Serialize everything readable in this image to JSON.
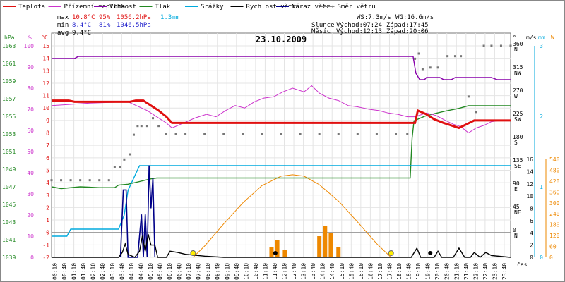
{
  "chart_data": {
    "type": "line",
    "title": "23.10.2009",
    "legend": [
      {
        "label": "Teplota",
        "color": "#e01010"
      },
      {
        "label": "Přízemní teplota",
        "color": "#cc33cc"
      },
      {
        "label": "Vlhkost",
        "color": "#8800aa"
      },
      {
        "label": "Tlak",
        "color": "#228822"
      },
      {
        "label": "Srážky",
        "color": "#00aadd"
      },
      {
        "label": "Rychlost větru",
        "color": "#000000"
      },
      {
        "label": "Náraz větru",
        "color": "#000088"
      },
      {
        "label": "Směr větru",
        "color": "#888888"
      }
    ],
    "stats": {
      "row_labels": [
        "max",
        "min",
        "avg"
      ],
      "temp": [
        "10.8°C",
        "8.4°C",
        "9.4°C"
      ],
      "hum": [
        "95%",
        "81%",
        ""
      ],
      "press": [
        "1056.2hPa",
        "1046.5hPa",
        ""
      ],
      "rain": [
        "1.3mm",
        "",
        ""
      ]
    },
    "info": {
      "ws": "WS:7.3m/s",
      "wg": "WG:16.6m/s",
      "sun": "Slunce",
      "sun_rise": "Východ:07:24",
      "sun_set": "Západ:17:45",
      "moon": "Měsíc",
      "moon_rise": "Východ:12:13",
      "moon_set": "Západ:20:06"
    },
    "axis_units": {
      "hpa": "hPa",
      "pct": "%",
      "degc": "°C",
      "deg": "°",
      "ms": "m/s",
      "mm": "mm",
      "wh": "W",
      "cas": "čas"
    },
    "axes": {
      "hpa": [
        "1039",
        "1041",
        "1043",
        "1045",
        "1047",
        "1049",
        "1051",
        "1053",
        "1055",
        "1057",
        "1059",
        "1061",
        "1063"
      ],
      "pct": [
        "0",
        "10",
        "20",
        "30",
        "40",
        "50",
        "60",
        "70",
        "80",
        "90",
        "100"
      ],
      "degc": [
        "-2",
        "-1",
        "0",
        "1",
        "2",
        "3",
        "4",
        "5",
        "6",
        "7",
        "8",
        "9",
        "10",
        "11",
        "12",
        "13",
        "14",
        "15"
      ],
      "dir": [
        {
          "deg": "0",
          "lbl": "N"
        },
        {
          "deg": "45",
          "lbl": "NE"
        },
        {
          "deg": "90",
          "lbl": "E"
        },
        {
          "deg": "135",
          "lbl": "SE"
        },
        {
          "deg": "180",
          "lbl": "S"
        },
        {
          "deg": "225",
          "lbl": "SW"
        },
        {
          "deg": "270",
          "lbl": "W"
        },
        {
          "deg": "315",
          "lbl": "NW"
        },
        {
          "deg": "360",
          "lbl": "N"
        }
      ],
      "ms": [
        "0",
        "2",
        "4",
        "6",
        "8",
        "10",
        "12",
        "14",
        "16"
      ],
      "mm": [
        "0",
        "1",
        "2",
        "3"
      ],
      "wh": [
        "0",
        "60",
        "120",
        "180",
        "240",
        "300",
        "360",
        "420",
        "480",
        "540"
      ]
    },
    "x_ticks": [
      "00:10",
      "00:40",
      "01:10",
      "01:40",
      "02:10",
      "02:40",
      "03:10",
      "03:40",
      "04:10",
      "04:40",
      "05:10",
      "05:40",
      "06:10",
      "06:40",
      "07:10",
      "07:40",
      "08:10",
      "08:40",
      "09:10",
      "09:40",
      "10:10",
      "10:40",
      "11:10",
      "11:40",
      "12:10",
      "12:40",
      "13:10",
      "13:40",
      "14:10",
      "14:40",
      "15:10",
      "15:40",
      "16:10",
      "16:40",
      "17:10",
      "17:40",
      "18:10",
      "18:40",
      "19:10",
      "19:40",
      "20:10",
      "20:40",
      "21:10",
      "21:40",
      "22:10",
      "22:40",
      "23:10",
      "23:40"
    ],
    "x_range_hours": [
      0,
      24
    ],
    "series": {
      "teplota": [
        [
          0,
          10.6
        ],
        [
          0.9,
          10.6
        ],
        [
          1.2,
          10.5
        ],
        [
          4.1,
          10.5
        ],
        [
          4.4,
          10.6
        ],
        [
          4.8,
          10.6
        ],
        [
          5.2,
          10.2
        ],
        [
          5.6,
          9.8
        ],
        [
          6.0,
          9.3
        ],
        [
          6.3,
          8.8
        ],
        [
          18.6,
          8.8
        ],
        [
          19.0,
          8.8
        ],
        [
          19.15,
          9.8
        ],
        [
          19.6,
          9.5
        ],
        [
          20.0,
          9.1
        ],
        [
          20.5,
          8.8
        ],
        [
          20.9,
          8.6
        ],
        [
          21.3,
          8.4
        ],
        [
          21.7,
          8.7
        ],
        [
          22.1,
          9.0
        ],
        [
          22.6,
          9.0
        ],
        [
          24,
          9.0
        ]
      ],
      "prizemni": [
        [
          0,
          10.2
        ],
        [
          2,
          10.4
        ],
        [
          4,
          10.5
        ],
        [
          5,
          9.8
        ],
        [
          6,
          8.8
        ],
        [
          6.3,
          8.4
        ],
        [
          6.9,
          8.8
        ],
        [
          7.5,
          9.2
        ],
        [
          8.1,
          9.5
        ],
        [
          8.6,
          9.3
        ],
        [
          9.1,
          9.8
        ],
        [
          9.6,
          10.2
        ],
        [
          10.1,
          10.0
        ],
        [
          10.6,
          10.5
        ],
        [
          11.1,
          10.8
        ],
        [
          11.6,
          10.9
        ],
        [
          12.1,
          11.3
        ],
        [
          12.6,
          11.6
        ],
        [
          13.2,
          11.3
        ],
        [
          13.6,
          11.8
        ],
        [
          14.0,
          11.2
        ],
        [
          14.5,
          10.8
        ],
        [
          15.0,
          10.6
        ],
        [
          15.5,
          10.2
        ],
        [
          16.0,
          10.1
        ],
        [
          16.6,
          9.9
        ],
        [
          17.1,
          9.8
        ],
        [
          17.6,
          9.6
        ],
        [
          18.1,
          9.5
        ],
        [
          18.6,
          9.3
        ],
        [
          19.0,
          9.3
        ],
        [
          19.6,
          9.6
        ],
        [
          20.1,
          9.4
        ],
        [
          20.6,
          9.0
        ],
        [
          21.0,
          8.7
        ],
        [
          21.4,
          8.5
        ],
        [
          21.8,
          8.0
        ],
        [
          22.2,
          8.4
        ],
        [
          22.6,
          8.6
        ],
        [
          23.0,
          8.9
        ],
        [
          23.5,
          9.0
        ],
        [
          24,
          9.0
        ]
      ],
      "vlhkost": [
        [
          0,
          94
        ],
        [
          1.2,
          94
        ],
        [
          1.4,
          95
        ],
        [
          18.7,
          95
        ],
        [
          18.9,
          95
        ],
        [
          19.05,
          87
        ],
        [
          19.25,
          84
        ],
        [
          19.5,
          84
        ],
        [
          19.6,
          85
        ],
        [
          20.3,
          85
        ],
        [
          20.5,
          84
        ],
        [
          20.9,
          84
        ],
        [
          21.1,
          85
        ],
        [
          23.0,
          85
        ],
        [
          23.3,
          84
        ],
        [
          24,
          84
        ]
      ],
      "tlak": [
        [
          0,
          1047.0
        ],
        [
          0.5,
          1046.8
        ],
        [
          1.5,
          1047.0
        ],
        [
          2.5,
          1046.9
        ],
        [
          3.3,
          1046.9
        ],
        [
          3.5,
          1047.2
        ],
        [
          4.0,
          1047.3
        ],
        [
          4.6,
          1047.6
        ],
        [
          5.2,
          1047.9
        ],
        [
          5.5,
          1048.0
        ],
        [
          18.75,
          1048.0
        ],
        [
          18.85,
          1052.5
        ],
        [
          18.95,
          1054.5
        ],
        [
          19.5,
          1055.0
        ],
        [
          20.0,
          1055.3
        ],
        [
          20.6,
          1055.6
        ],
        [
          21.3,
          1055.9
        ],
        [
          21.8,
          1056.2
        ],
        [
          22.5,
          1056.2
        ],
        [
          24,
          1056.2
        ]
      ],
      "srazky": [
        [
          0,
          0.3
        ],
        [
          0.8,
          0.3
        ],
        [
          1.0,
          0.4
        ],
        [
          3.5,
          0.4
        ],
        [
          3.8,
          0.6
        ],
        [
          4.0,
          0.95
        ],
        [
          4.6,
          1.3
        ],
        [
          24,
          1.3
        ]
      ],
      "rychlost": [
        [
          0,
          0
        ],
        [
          3.5,
          0
        ],
        [
          3.7,
          0.8
        ],
        [
          3.85,
          2.2
        ],
        [
          4.0,
          0.5
        ],
        [
          4.35,
          0
        ],
        [
          4.6,
          1.0
        ],
        [
          4.75,
          3.5
        ],
        [
          4.9,
          1.0
        ],
        [
          5.05,
          3.8
        ],
        [
          5.2,
          2.0
        ],
        [
          5.4,
          2.0
        ],
        [
          5.55,
          0
        ],
        [
          6.0,
          0
        ],
        [
          6.2,
          1.0
        ],
        [
          6.6,
          0.8
        ],
        [
          7.0,
          0.5
        ],
        [
          8.0,
          0.2
        ],
        [
          9,
          0
        ],
        [
          18.8,
          0
        ],
        [
          19.1,
          1.5
        ],
        [
          19.3,
          0
        ],
        [
          20.0,
          0
        ],
        [
          20.2,
          1.0
        ],
        [
          20.4,
          0
        ],
        [
          21.0,
          0
        ],
        [
          21.3,
          1.5
        ],
        [
          21.6,
          0
        ],
        [
          21.9,
          0
        ],
        [
          22.1,
          0.8
        ],
        [
          22.4,
          0
        ],
        [
          22.7,
          0.8
        ],
        [
          23.0,
          0.3
        ],
        [
          24,
          0
        ]
      ],
      "naraz": [
        [
          3.6,
          0
        ],
        [
          3.75,
          11
        ],
        [
          3.9,
          11
        ],
        [
          4.0,
          0
        ],
        [
          4.5,
          0
        ],
        [
          4.7,
          7
        ],
        [
          4.8,
          0
        ],
        [
          4.9,
          7
        ],
        [
          5.0,
          0
        ],
        [
          5.1,
          15
        ],
        [
          5.2,
          8
        ],
        [
          5.3,
          13
        ],
        [
          5.4,
          0
        ]
      ],
      "smer_points": [
        [
          0,
          100
        ],
        [
          0.5,
          100
        ],
        [
          1,
          100
        ],
        [
          1.5,
          100
        ],
        [
          2,
          100
        ],
        [
          2.5,
          100
        ],
        [
          3,
          100
        ],
        [
          3.3,
          125
        ],
        [
          3.6,
          125
        ],
        [
          3.8,
          140
        ],
        [
          4.1,
          150
        ],
        [
          4.3,
          188
        ],
        [
          4.5,
          205
        ],
        [
          4.7,
          205
        ],
        [
          5.0,
          205
        ],
        [
          5.3,
          220
        ],
        [
          5.6,
          205
        ],
        [
          6.0,
          190
        ],
        [
          6.5,
          190
        ],
        [
          7,
          190
        ],
        [
          8,
          190
        ],
        [
          9,
          190
        ],
        [
          10,
          190
        ],
        [
          11,
          190
        ],
        [
          12,
          190
        ],
        [
          13,
          190
        ],
        [
          14,
          190
        ],
        [
          15,
          190
        ],
        [
          16,
          190
        ],
        [
          17,
          190
        ],
        [
          18,
          190
        ],
        [
          18.6,
          190
        ],
        [
          19.0,
          335
        ],
        [
          19.2,
          345
        ],
        [
          19.4,
          315
        ],
        [
          19.8,
          318
        ],
        [
          20.2,
          318
        ],
        [
          20.7,
          340
        ],
        [
          21.1,
          340
        ],
        [
          21.4,
          340
        ],
        [
          21.8,
          262
        ],
        [
          22.2,
          232
        ],
        [
          22.6,
          360
        ],
        [
          23.0,
          360
        ],
        [
          23.5,
          360
        ],
        [
          24,
          360
        ]
      ],
      "sun_power": [
        [
          7.4,
          0
        ],
        [
          8,
          62
        ],
        [
          9,
          185
        ],
        [
          10,
          300
        ],
        [
          11,
          395
        ],
        [
          12,
          447
        ],
        [
          12.6,
          455
        ],
        [
          13.2,
          447
        ],
        [
          14,
          400
        ],
        [
          15,
          310
        ],
        [
          16,
          195
        ],
        [
          17,
          75
        ],
        [
          17.75,
          0
        ]
      ],
      "rain_hist": [
        [
          11.5,
          0.15
        ],
        [
          11.8,
          0.25
        ],
        [
          12.2,
          0.1
        ],
        [
          14.0,
          0.3
        ],
        [
          14.3,
          0.45
        ],
        [
          14.6,
          0.35
        ],
        [
          15.0,
          0.15
        ]
      ],
      "sun_markers": [
        7.4,
        17.75
      ],
      "event_markers": [
        11.7,
        19.8
      ]
    }
  }
}
